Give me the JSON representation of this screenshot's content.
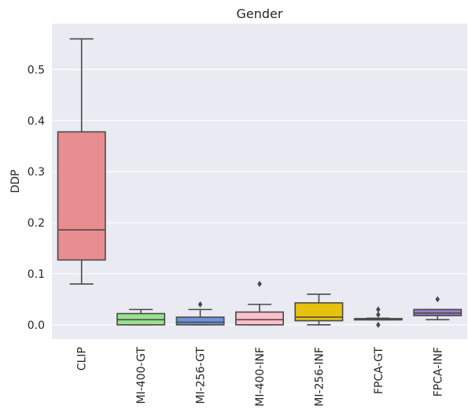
{
  "chart_data": {
    "type": "box",
    "title": "Gender",
    "xlabel": "",
    "ylabel": "DDP",
    "ylim": [
      -0.028,
      0.59
    ],
    "yticks": [
      0.0,
      0.1,
      0.2,
      0.3,
      0.4,
      0.5
    ],
    "ytick_labels": [
      "0.0",
      "0.1",
      "0.2",
      "0.3",
      "0.4",
      "0.5"
    ],
    "grid": true,
    "background_color": "#eaeaf2",
    "categories": [
      "CLIP",
      "MI-400-GT",
      "MI-256-GT",
      "MI-400-INF",
      "MI-256-INF",
      "FPCA-GT",
      "FPCA-INF"
    ],
    "boxes": [
      {
        "category": "CLIP",
        "color": "#e88d90",
        "whisker_low": 0.08,
        "q1": 0.127,
        "median": 0.186,
        "q3": 0.378,
        "whisker_high": 0.56,
        "outliers": []
      },
      {
        "category": "MI-400-GT",
        "color": "#98e28f",
        "whisker_low": 0.0,
        "q1": 0.0,
        "median": 0.01,
        "q3": 0.022,
        "whisker_high": 0.03,
        "outliers": []
      },
      {
        "category": "MI-256-GT",
        "color": "#6f92d8",
        "whisker_low": 0.0,
        "q1": 0.0,
        "median": 0.005,
        "q3": 0.015,
        "whisker_high": 0.03,
        "outliers": [
          0.04
        ]
      },
      {
        "category": "MI-400-INF",
        "color": "#ffc0cb",
        "whisker_low": 0.0,
        "q1": 0.0,
        "median": 0.01,
        "q3": 0.025,
        "whisker_high": 0.04,
        "outliers": [
          0.08
        ]
      },
      {
        "category": "MI-256-INF",
        "color": "#e6c20f",
        "whisker_low": 0.0,
        "q1": 0.008,
        "median": 0.015,
        "q3": 0.043,
        "whisker_high": 0.06,
        "outliers": []
      },
      {
        "category": "FPCA-GT",
        "color": "#a0a0a0",
        "whisker_low": 0.01,
        "q1": 0.01,
        "median": 0.012,
        "q3": 0.012,
        "whisker_high": 0.013,
        "outliers": [
          0.0,
          0.02,
          0.03
        ]
      },
      {
        "category": "FPCA-INF",
        "color": "#9a7cc8",
        "whisker_low": 0.01,
        "q1": 0.018,
        "median": 0.023,
        "q3": 0.03,
        "whisker_high": 0.03,
        "outliers": [
          0.05
        ]
      }
    ]
  }
}
